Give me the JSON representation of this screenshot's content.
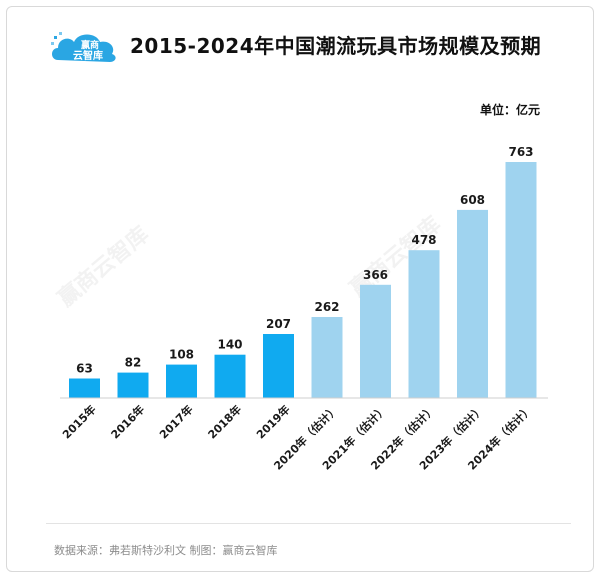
{
  "header": {
    "title": "2015-2024年中国潮流玩具市场规模及预期",
    "unit": "单位：亿元",
    "logo_text_top": "赢商",
    "logo_text_bottom": "云智库"
  },
  "footer": {
    "source": "数据来源：弗若斯特沙利文  制图：赢商云智库"
  },
  "watermark": "赢商云智库",
  "colors": {
    "actual": "#10aaf0",
    "forecast": "#9fd3ef",
    "logo": "#2aa6e3"
  },
  "chart_data": {
    "type": "bar",
    "title": "2015-2024年中国潮流玩具市场规模及预期",
    "ylabel": "",
    "unit": "单位：亿元",
    "categories": [
      "2015年",
      "2016年",
      "2017年",
      "2018年",
      "2019年",
      "2020年（估计）",
      "2021年（估计）",
      "2022年（估计）",
      "2023年（估计）",
      "2024年（估计）"
    ],
    "values": [
      63,
      82,
      108,
      140,
      207,
      262,
      366,
      478,
      608,
      763
    ],
    "estimated": [
      false,
      false,
      false,
      false,
      false,
      true,
      true,
      true,
      true,
      true
    ],
    "ylim": [
      0,
      800
    ],
    "grid": false,
    "legend": "none"
  }
}
